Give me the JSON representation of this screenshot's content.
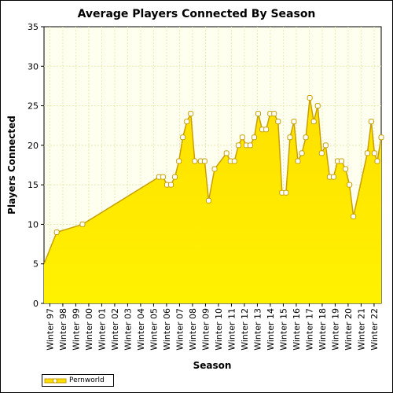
{
  "chart_data": {
    "type": "area",
    "title": "Average Players Connected By Season",
    "xlabel": "Season",
    "ylabel": "Players Connected",
    "ylim": [
      0,
      35
    ],
    "yticks": [
      0,
      5,
      10,
      15,
      20,
      25,
      30,
      35
    ],
    "grid": true,
    "legend_position": "bottom-left",
    "colors": {
      "fill_top": "#ffe000",
      "fill_bottom": "#fff200",
      "line": "#c8a000",
      "grid": "#e8e8b0",
      "plot_bg": "#fffff0"
    },
    "tick_labels": [
      "Winter 97",
      "Winter 98",
      "Winter 99",
      "Winter 00",
      "Winter 01",
      "Winter 02",
      "Winter 03",
      "Winter 04",
      "Winter 05",
      "Winter 06",
      "Winter 07",
      "Winter 08",
      "Winter 09",
      "Winter 10",
      "Winter 11",
      "Winter 12",
      "Winter 13",
      "Winter 14",
      "Winter 15",
      "Winter 16",
      "Winter 17",
      "Winter 18",
      "Winter 19",
      "Winter 20",
      "Winter 21",
      "Winter 22"
    ],
    "x_range": [
      0,
      85
    ],
    "series": [
      {
        "name": "Pernworld",
        "points": [
          [
            0,
            5
          ],
          [
            3.2,
            9
          ],
          [
            9.7,
            10
          ],
          [
            29,
            16
          ],
          [
            30,
            16
          ],
          [
            31,
            15
          ],
          [
            32,
            15
          ],
          [
            33,
            16
          ],
          [
            34,
            18
          ],
          [
            35,
            21
          ],
          [
            36,
            23
          ],
          [
            37,
            24
          ],
          [
            38,
            18
          ],
          [
            39.5,
            18
          ],
          [
            40.5,
            18
          ],
          [
            41.5,
            13
          ],
          [
            43,
            17
          ],
          [
            46,
            19
          ],
          [
            47,
            18
          ],
          [
            48,
            18
          ],
          [
            49,
            20
          ],
          [
            50,
            21
          ],
          [
            51,
            20
          ],
          [
            52,
            20
          ],
          [
            53,
            21
          ],
          [
            54,
            24
          ],
          [
            55,
            22
          ],
          [
            56,
            22
          ],
          [
            57,
            24
          ],
          [
            58,
            24
          ],
          [
            59,
            23
          ],
          [
            60,
            14
          ],
          [
            61,
            14
          ],
          [
            62,
            21
          ],
          [
            63,
            23
          ],
          [
            64,
            18
          ],
          [
            65,
            19
          ],
          [
            66,
            21
          ],
          [
            67,
            26
          ],
          [
            68,
            23
          ],
          [
            69,
            25
          ],
          [
            70,
            19
          ],
          [
            71,
            20
          ],
          [
            72,
            16
          ],
          [
            73,
            16
          ],
          [
            74,
            18
          ],
          [
            75,
            18
          ],
          [
            76,
            17
          ],
          [
            77,
            15
          ],
          [
            78,
            11
          ],
          [
            81.5,
            19
          ],
          [
            82.5,
            23
          ],
          [
            83.3,
            19
          ],
          [
            84,
            18
          ],
          [
            85,
            21
          ]
        ]
      }
    ]
  }
}
